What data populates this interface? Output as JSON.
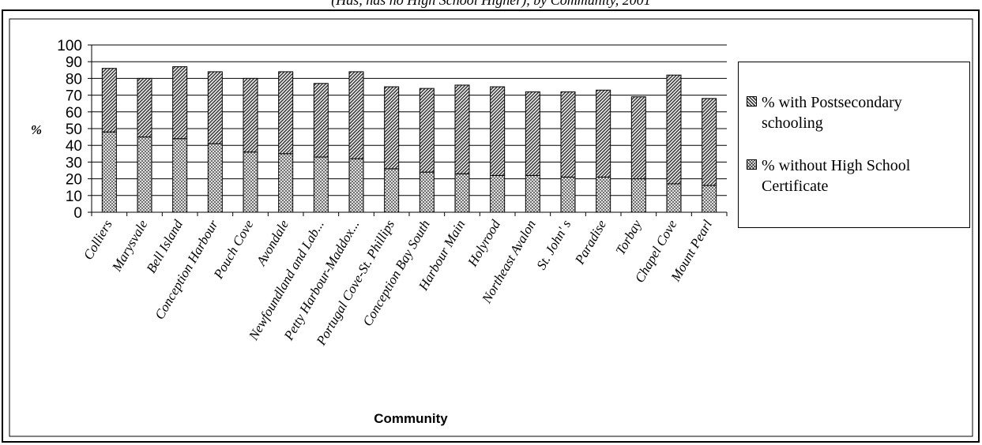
{
  "header": {
    "title": "(Has, has no High School Higher), by Community, 2001"
  },
  "chart_data": {
    "type": "bar",
    "stacked": true,
    "categories": [
      "Colliers",
      "Marysvale",
      "Bell Island",
      "Conception Harbour",
      "Pouch Cove",
      "Avondale",
      "Newfoundland and Lab...",
      "Petty Harbour-Maddox...",
      "Portugal Cove-St. Phillips",
      "Conception Bay South",
      "Harbour Main",
      "Holyrood",
      "Northeast Avalon",
      "St. John' s",
      "Paradise",
      "Torbay",
      "Chapel Cove",
      "Mount Pearl"
    ],
    "series": [
      {
        "name": "% without High School Certificate",
        "values": [
          48,
          45,
          44,
          41,
          36,
          35,
          33,
          32,
          26,
          24,
          23,
          22,
          22,
          21,
          21,
          20,
          17,
          16
        ],
        "pattern": "crosshatch"
      },
      {
        "name": "% with Postsecondary schooling",
        "values": [
          38,
          35,
          43,
          43,
          44,
          49,
          44,
          52,
          49,
          50,
          53,
          53,
          50,
          51,
          52,
          49,
          65,
          52
        ],
        "pattern": "diagonal"
      }
    ],
    "legend_order": [
      1,
      0
    ],
    "xlabel": "Community",
    "ylabel": "%",
    "ylim": [
      0,
      100
    ],
    "yticks": [
      "0",
      "10",
      "20",
      "30",
      "40",
      "50",
      "60",
      "70",
      "80",
      "90",
      "100"
    ],
    "grid": true,
    "legend_position": "right"
  }
}
